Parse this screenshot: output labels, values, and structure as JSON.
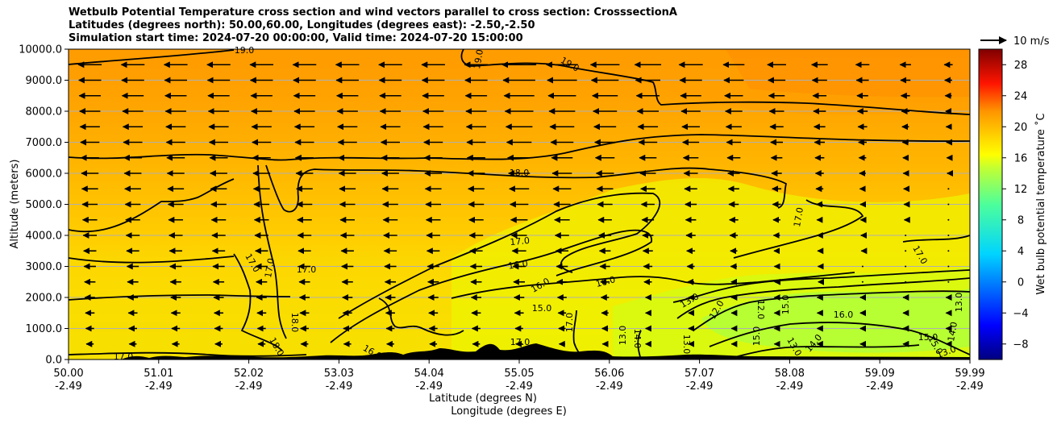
{
  "chart_data": {
    "type": "contour",
    "title": [
      "Wetbulb Potential Temperature cross section and wind vectors parallel to cross section: CrosssectionA",
      "Latitudes (degrees north): 50.00,60.00, Longitudes (degrees east): -2.50,-2.50",
      "Simulation start time: 2024-07-20 00:00:00, Valid time: 2024-07-20 15:00:00"
    ],
    "ylabel": "Altitude (meters)",
    "xlabel": "Latitude (degrees N)",
    "xlabel2": "Longitude (degrees E)",
    "ylim": [
      0,
      10000
    ],
    "yticks": [
      "0.0",
      "1000.0",
      "2000.0",
      "3000.0",
      "4000.0",
      "5000.0",
      "6000.0",
      "7000.0",
      "8000.0",
      "9000.0",
      "10000.0"
    ],
    "xticks_lat": [
      "50.00",
      "51.01",
      "52.02",
      "53.03",
      "54.04",
      "55.05",
      "56.06",
      "57.07",
      "58.08",
      "59.09",
      "59.99"
    ],
    "xticks_lon": [
      "-2.49",
      "-2.49",
      "-2.49",
      "-2.49",
      "-2.49",
      "-2.49",
      "-2.49",
      "-2.49",
      "-2.49",
      "-2.49",
      "-2.49"
    ],
    "grid": "horizontal",
    "colorbar": {
      "label": "Wet bulb potential temperature ˚C",
      "range": [
        -10,
        30
      ],
      "ticks": [
        "−8",
        "−4",
        "0",
        "4",
        "8",
        "12",
        "16",
        "20",
        "24",
        "28"
      ],
      "colormap": "jet"
    },
    "wind_key": "10 m/s",
    "contour_levels": [
      12,
      13,
      14,
      15,
      16,
      17,
      18,
      19
    ],
    "contour_labels": [
      "19.0",
      "19.0",
      "19.0",
      "18.0",
      "17.0",
      "16.0",
      "16.0",
      "16.0",
      "17.0",
      "17.0",
      "17.0",
      "17.0",
      "17.0",
      "18.0",
      "18.0",
      "16.0",
      "15.0",
      "13.0",
      "12.0",
      "12.0",
      "15.0",
      "13.0",
      "14.0",
      "13.0",
      "15.0",
      "14.0",
      "13.0",
      "15.0",
      "15.0",
      "14.0",
      "13.0",
      "17.0",
      "17.0",
      "17.0",
      "16.0",
      "13.0"
    ]
  }
}
